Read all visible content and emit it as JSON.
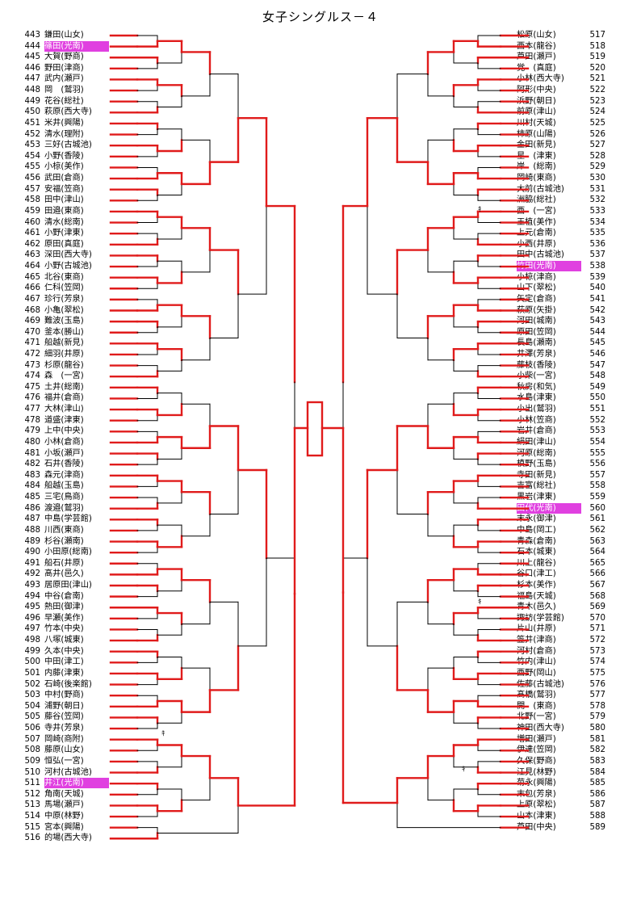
{
  "title": "女子シングルス－４",
  "colors": {
    "winner_line": "#e01b1b",
    "other_line": "#000000",
    "highlight": "#e040e0"
  },
  "left_entries": [
    {
      "num": "443",
      "name": "鎌田(山女)"
    },
    {
      "num": "444",
      "name": "篠田(光南)",
      "highlight": true
    },
    {
      "num": "445",
      "name": "大賀(野商)"
    },
    {
      "num": "446",
      "name": "野田(津商)"
    },
    {
      "num": "447",
      "name": "武内(瀬戸)"
    },
    {
      "num": "448",
      "name": "岡　(鷲羽)"
    },
    {
      "num": "449",
      "name": "花谷(総社)"
    },
    {
      "num": "450",
      "name": "萩原(西大寺)"
    },
    {
      "num": "451",
      "name": "米井(興陽)"
    },
    {
      "num": "452",
      "name": "清水(理附)"
    },
    {
      "num": "453",
      "name": "三好(古城池)"
    },
    {
      "num": "454",
      "name": "小野(香陵)"
    },
    {
      "num": "455",
      "name": "小椋(美作)"
    },
    {
      "num": "456",
      "name": "武田(倉商)"
    },
    {
      "num": "457",
      "name": "安福(笠商)"
    },
    {
      "num": "458",
      "name": "田中(津山)"
    },
    {
      "num": "459",
      "name": "田邉(東商)"
    },
    {
      "num": "460",
      "name": "清水(総南)"
    },
    {
      "num": "461",
      "name": "小野(津東)"
    },
    {
      "num": "462",
      "name": "原田(真庭)"
    },
    {
      "num": "463",
      "name": "深田(西大寺)"
    },
    {
      "num": "464",
      "name": "小野(古城池)"
    },
    {
      "num": "465",
      "name": "北谷(東商)"
    },
    {
      "num": "466",
      "name": "仁科(笠岡)"
    },
    {
      "num": "467",
      "name": "珍行(芳泉)"
    },
    {
      "num": "468",
      "name": "小亀(翠松)"
    },
    {
      "num": "469",
      "name": "難波(玉島)"
    },
    {
      "num": "470",
      "name": "釜本(勝山)"
    },
    {
      "num": "471",
      "name": "船越(新見)"
    },
    {
      "num": "472",
      "name": "細羽(井原)"
    },
    {
      "num": "473",
      "name": "杉原(龍谷)"
    },
    {
      "num": "474",
      "name": "森　(一宮)"
    },
    {
      "num": "475",
      "name": "土井(総南)"
    },
    {
      "num": "476",
      "name": "福井(倉商)"
    },
    {
      "num": "477",
      "name": "大林(津山)"
    },
    {
      "num": "478",
      "name": "道盛(津東)"
    },
    {
      "num": "479",
      "name": "上中(中央)"
    },
    {
      "num": "480",
      "name": "小林(倉商)"
    },
    {
      "num": "481",
      "name": "小坂(瀬戸)"
    },
    {
      "num": "482",
      "name": "石井(香陵)"
    },
    {
      "num": "483",
      "name": "森元(津商)"
    },
    {
      "num": "484",
      "name": "船越(玉島)"
    },
    {
      "num": "485",
      "name": "三宅(鳥商)"
    },
    {
      "num": "486",
      "name": "渡邉(鷲羽)"
    },
    {
      "num": "487",
      "name": "中島(学芸館)"
    },
    {
      "num": "488",
      "name": "川西(東商)"
    },
    {
      "num": "489",
      "name": "杉谷(瀬南)"
    },
    {
      "num": "490",
      "name": "小田原(総南)"
    },
    {
      "num": "491",
      "name": "船石(井原)"
    },
    {
      "num": "492",
      "name": "髙井(邑久)"
    },
    {
      "num": "493",
      "name": "居原田(津山)"
    },
    {
      "num": "494",
      "name": "中谷(倉南)"
    },
    {
      "num": "495",
      "name": "熱田(御津)"
    },
    {
      "num": "496",
      "name": "早瀬(美作)"
    },
    {
      "num": "497",
      "name": "竹本(中央)"
    },
    {
      "num": "498",
      "name": "八塚(城東)"
    },
    {
      "num": "499",
      "name": "久本(中央)"
    },
    {
      "num": "500",
      "name": "中田(津工)"
    },
    {
      "num": "501",
      "name": "内藤(津東)"
    },
    {
      "num": "502",
      "name": "石崎(後楽館)"
    },
    {
      "num": "503",
      "name": "中村(野商)"
    },
    {
      "num": "504",
      "name": "浦野(朝日)"
    },
    {
      "num": "505",
      "name": "藤谷(笠岡)"
    },
    {
      "num": "506",
      "name": "寺井(芳泉)"
    },
    {
      "num": "507",
      "name": "岡崎(商附)"
    },
    {
      "num": "508",
      "name": "藤原(山女)"
    },
    {
      "num": "509",
      "name": "恒弘(一宮)"
    },
    {
      "num": "510",
      "name": "河村(古城池)"
    },
    {
      "num": "511",
      "name": "井江(光南)",
      "highlight": true
    },
    {
      "num": "512",
      "name": "角南(天城)"
    },
    {
      "num": "513",
      "name": "馬場(瀬戸)"
    },
    {
      "num": "514",
      "name": "中原(林野)"
    },
    {
      "num": "515",
      "name": "宮本(興陽)"
    },
    {
      "num": "516",
      "name": "的場(西大寺)"
    }
  ],
  "right_entries": [
    {
      "num": "517",
      "name": "松原(山女)"
    },
    {
      "num": "518",
      "name": "西本(龍谷)"
    },
    {
      "num": "519",
      "name": "芦田(瀬戸)"
    },
    {
      "num": "520",
      "name": "覚　(真庭)"
    },
    {
      "num": "521",
      "name": "小林(西大寺)"
    },
    {
      "num": "522",
      "name": "阿形(中央)"
    },
    {
      "num": "523",
      "name": "浜野(朝日)"
    },
    {
      "num": "524",
      "name": "前原(津山)"
    },
    {
      "num": "525",
      "name": "川村(天城)"
    },
    {
      "num": "526",
      "name": "柿原(山陽)"
    },
    {
      "num": "527",
      "name": "金田(新見)"
    },
    {
      "num": "528",
      "name": "星　(津東)"
    },
    {
      "num": "529",
      "name": "岸　(総南)"
    },
    {
      "num": "530",
      "name": "岡崎(東商)"
    },
    {
      "num": "531",
      "name": "大前(古城池)"
    },
    {
      "num": "532",
      "name": "洲脇(総社)"
    },
    {
      "num": "533",
      "name": "西　(一宮)"
    },
    {
      "num": "534",
      "name": "王植(美作)"
    },
    {
      "num": "535",
      "name": "上元(倉南)"
    },
    {
      "num": "536",
      "name": "小西(井原)"
    },
    {
      "num": "537",
      "name": "田中(古城池)"
    },
    {
      "num": "538",
      "name": "竹田(光南)",
      "highlight": true
    },
    {
      "num": "539",
      "name": "小椋(津商)"
    },
    {
      "num": "540",
      "name": "山下(翠松)"
    },
    {
      "num": "541",
      "name": "矢定(倉商)"
    },
    {
      "num": "542",
      "name": "萩原(矢掛)"
    },
    {
      "num": "543",
      "name": "河田(城南)"
    },
    {
      "num": "544",
      "name": "原田(笠岡)"
    },
    {
      "num": "545",
      "name": "長島(瀬南)"
    },
    {
      "num": "546",
      "name": "井澤(芳泉)"
    },
    {
      "num": "547",
      "name": "藤枝(香陵)"
    },
    {
      "num": "548",
      "name": "小柴(一宮)"
    },
    {
      "num": "549",
      "name": "秋房(和気)"
    },
    {
      "num": "550",
      "name": "水島(津東)"
    },
    {
      "num": "551",
      "name": "小出(鷲羽)"
    },
    {
      "num": "552",
      "name": "小林(笠商)"
    },
    {
      "num": "553",
      "name": "岩井(倉商)"
    },
    {
      "num": "554",
      "name": "絹田(津山)"
    },
    {
      "num": "555",
      "name": "河原(総南)"
    },
    {
      "num": "556",
      "name": "槙野(玉島)"
    },
    {
      "num": "557",
      "name": "寺田(新見)"
    },
    {
      "num": "558",
      "name": "吉富(総社)"
    },
    {
      "num": "559",
      "name": "黒岩(津東)"
    },
    {
      "num": "560",
      "name": "田代(光南)",
      "highlight": true
    },
    {
      "num": "561",
      "name": "末永(御津)"
    },
    {
      "num": "562",
      "name": "中島(岡工)"
    },
    {
      "num": "563",
      "name": "青森(倉南)"
    },
    {
      "num": "564",
      "name": "石本(城東)"
    },
    {
      "num": "565",
      "name": "川上(龍谷)"
    },
    {
      "num": "566",
      "name": "谷口(津工)"
    },
    {
      "num": "567",
      "name": "杉本(美作)"
    },
    {
      "num": "568",
      "name": "福島(天城)"
    },
    {
      "num": "569",
      "name": "青木(邑久)"
    },
    {
      "num": "570",
      "name": "諏訪(学芸館)"
    },
    {
      "num": "571",
      "name": "片山(井原)"
    },
    {
      "num": "572",
      "name": "笠井(津商)"
    },
    {
      "num": "573",
      "name": "河村(倉商)"
    },
    {
      "num": "574",
      "name": "竹内(津山)"
    },
    {
      "num": "575",
      "name": "西野(岡山)"
    },
    {
      "num": "576",
      "name": "佐藤(古城池)"
    },
    {
      "num": "577",
      "name": "髙橋(鷲羽)"
    },
    {
      "num": "578",
      "name": "開　(東商)"
    },
    {
      "num": "579",
      "name": "北野(一宮)"
    },
    {
      "num": "580",
      "name": "神田(西大寺)"
    },
    {
      "num": "581",
      "name": "増田(瀬戸)"
    },
    {
      "num": "582",
      "name": "伊達(笠岡)"
    },
    {
      "num": "583",
      "name": "久保(野商)"
    },
    {
      "num": "584",
      "name": "江見(林野)"
    },
    {
      "num": "585",
      "name": "菊永(興陽)"
    },
    {
      "num": "586",
      "name": "末包(芳泉)"
    },
    {
      "num": "587",
      "name": "上原(翠松)"
    },
    {
      "num": "588",
      "name": "山本(津東)"
    },
    {
      "num": "589",
      "name": "芦田(中央)"
    }
  ],
  "walkover_mark": "ｷ"
}
